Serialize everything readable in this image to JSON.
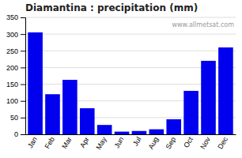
{
  "chart_data": {
    "type": "bar",
    "title": "Diamantina : precipitation (mm)",
    "categories": [
      "Jan",
      "Feb",
      "Mar",
      "Apr",
      "May",
      "Jun",
      "Jul",
      "Aug",
      "Sep",
      "Oct",
      "Nov",
      "Dec"
    ],
    "values": [
      305,
      120,
      163,
      78,
      28,
      8,
      10,
      15,
      45,
      130,
      220,
      260
    ],
    "color": "#0000EE",
    "ylim": [
      0,
      350
    ],
    "yticks": [
      0,
      50,
      100,
      150,
      200,
      250,
      300,
      350
    ],
    "grid": true,
    "annotations": [
      "www.allmetsat.com"
    ]
  }
}
